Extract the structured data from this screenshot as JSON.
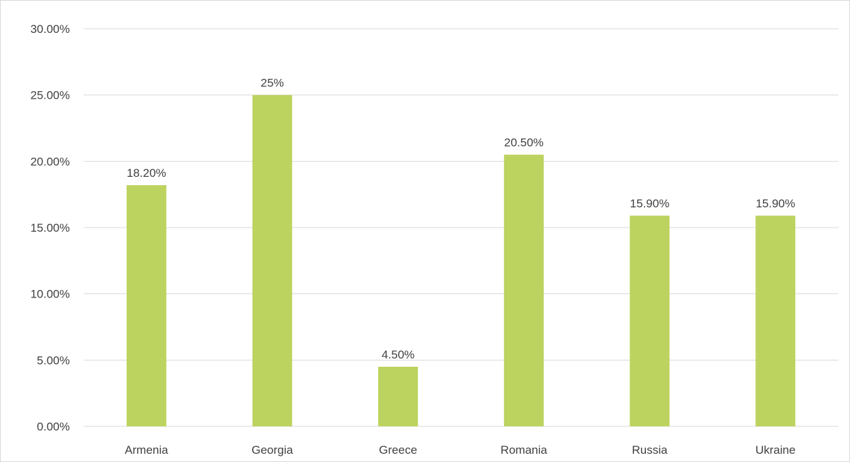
{
  "chart_data": {
    "type": "bar",
    "categories": [
      "Armenia",
      "Georgia",
      "Greece",
      "Romania",
      "Russia",
      "Ukraine"
    ],
    "values": [
      18.2,
      25,
      4.5,
      20.5,
      15.9,
      15.9
    ],
    "data_labels": [
      "18.20%",
      "25%",
      "4.50%",
      "20.50%",
      "15.90%",
      "15.90%"
    ],
    "y_ticks": [
      "0.00%",
      "5.00%",
      "10.00%",
      "15.00%",
      "20.00%",
      "25.00%",
      "30.00%"
    ],
    "ylim": [
      0,
      30
    ],
    "grid": true,
    "legend": "none",
    "bar_color": "#bcd35f",
    "grid_color": "#d9d9d9",
    "text_color": "#404040"
  }
}
